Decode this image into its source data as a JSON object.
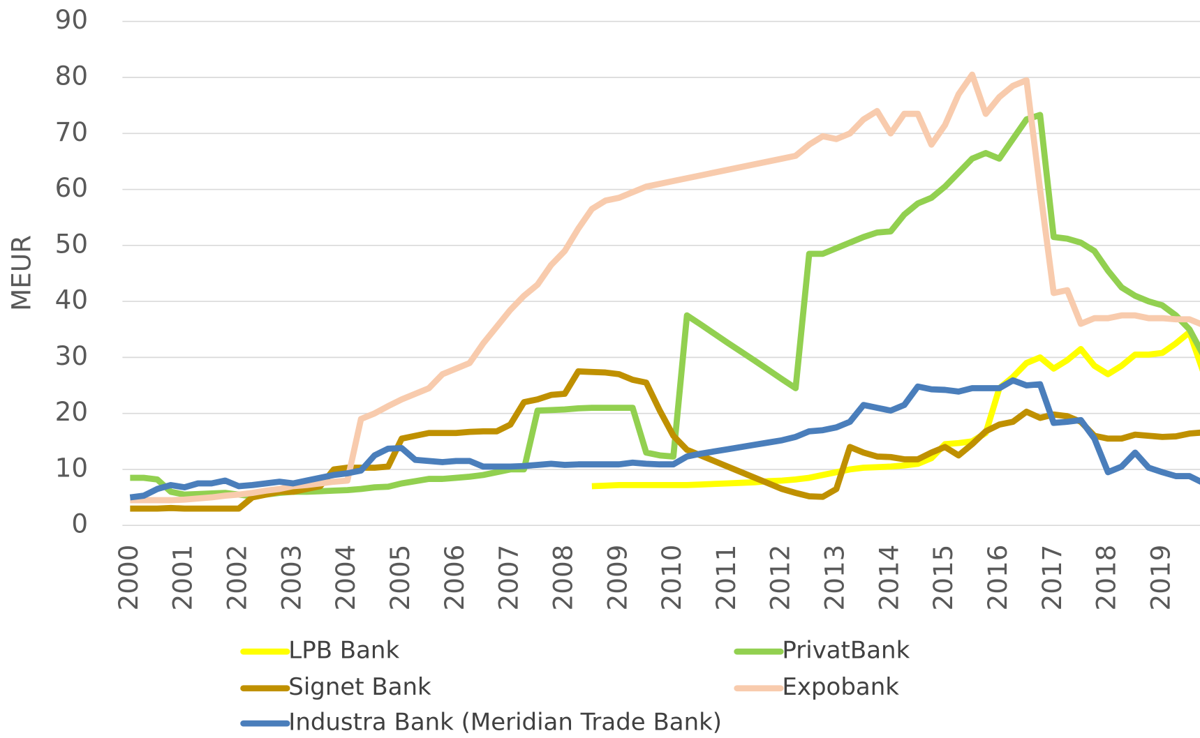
{
  "chart_data": {
    "type": "line",
    "y_label": "MEUR",
    "x": [
      2000,
      2000.25,
      2000.5,
      2000.75,
      2001,
      2001.25,
      2001.5,
      2001.75,
      2002,
      2002.25,
      2002.5,
      2002.75,
      2003,
      2003.25,
      2003.5,
      2003.75,
      2004,
      2004.25,
      2004.5,
      2004.75,
      2005,
      2005.25,
      2005.5,
      2005.75,
      2006,
      2006.25,
      2006.5,
      2006.75,
      2007,
      2007.25,
      2007.5,
      2007.75,
      2008,
      2008.25,
      2008.5,
      2008.75,
      2009,
      2009.25,
      2009.5,
      2009.75,
      2010,
      2010.25,
      2010.5,
      2010.75,
      2011,
      2011.25,
      2011.5,
      2011.75,
      2012,
      2012.25,
      2012.5,
      2012.75,
      2013,
      2013.25,
      2013.5,
      2013.75,
      2014,
      2014.25,
      2014.5,
      2014.75,
      2015,
      2015.25,
      2015.5,
      2015.75,
      2016,
      2016.25,
      2016.5,
      2016.75,
      2017,
      2017.25,
      2017.5,
      2017.75,
      2018,
      2018.25,
      2018.5,
      2018.75,
      2019,
      2019.25,
      2019.5,
      2019.75
    ],
    "series": [
      {
        "name": "LPB Bank",
        "color": "#ffff00",
        "values": [
          null,
          null,
          null,
          null,
          null,
          null,
          null,
          null,
          null,
          null,
          null,
          null,
          null,
          null,
          null,
          null,
          null,
          null,
          null,
          null,
          null,
          null,
          null,
          null,
          null,
          null,
          null,
          null,
          null,
          null,
          null,
          null,
          null,
          null,
          7,
          7.1,
          7.2,
          7.2,
          7.2,
          7.2,
          7.2,
          7.2,
          7.3,
          7.4,
          7.5,
          7.6,
          7.7,
          7.9,
          8,
          8.2,
          8.5,
          9,
          9.5,
          10,
          10.3,
          10.4,
          10.5,
          10.7,
          11,
          12,
          14.5,
          14.7,
          15,
          16.5,
          24.5,
          26.5,
          29,
          30,
          28,
          29.5,
          31.5,
          28.5,
          27,
          28.5,
          30.5,
          30.5,
          30.8,
          32.5,
          34.5,
          27.5
        ]
      },
      {
        "name": "PrivatBank",
        "color": "#92d050",
        "values": [
          8.5,
          8.5,
          8.2,
          6,
          5.5,
          5.6,
          5.7,
          5.8,
          5.5,
          5.2,
          5.5,
          5.8,
          6,
          6,
          6.1,
          6.2,
          6.3,
          6.5,
          6.8,
          6.9,
          7.5,
          7.9,
          8.3,
          8.3,
          8.5,
          8.7,
          9,
          9.5,
          10,
          10,
          20.5,
          20.6,
          20.7,
          20.9,
          21,
          21,
          21,
          21,
          13,
          12.5,
          12.3,
          37.5,
          35.9,
          34.25,
          32.6,
          31,
          29.4,
          27.75,
          26.1,
          24.5,
          48.5,
          48.5,
          49.5,
          50.5,
          51.5,
          52.3,
          52.5,
          55.5,
          57.5,
          58.5,
          60.5,
          63,
          65.5,
          66.5,
          65.5,
          69,
          72.5,
          73.3,
          51.5,
          51.2,
          50.5,
          49,
          45.5,
          42.5,
          41,
          40,
          39.3,
          37.5,
          35,
          30.5
        ]
      },
      {
        "name": "Signet Bank",
        "color": "#bf9000",
        "values": [
          3,
          3,
          3,
          3.1,
          3,
          3,
          3,
          3,
          3,
          5,
          5.5,
          6,
          6,
          6.5,
          7,
          10,
          10.3,
          10.3,
          10.3,
          10.5,
          15.5,
          16,
          16.5,
          16.5,
          16.5,
          16.7,
          16.8,
          16.8,
          18,
          22,
          22.5,
          23.3,
          23.5,
          27.5,
          27.4,
          27.3,
          27,
          26,
          25.5,
          20.5,
          16,
          13.5,
          12.5,
          11.5,
          10.5,
          9.5,
          8.5,
          7.5,
          6.5,
          5.8,
          5.2,
          5.1,
          6.5,
          14,
          13,
          12.3,
          12.2,
          11.8,
          11.8,
          13,
          14,
          12.5,
          14.5,
          16.8,
          18,
          18.5,
          20.3,
          19.2,
          19.8,
          19.5,
          18.5,
          16,
          15.5,
          15.5,
          16.2,
          16,
          15.8,
          15.9,
          16.4,
          16.6
        ]
      },
      {
        "name": "Expobank",
        "color": "#f8cbad",
        "values": [
          4.5,
          4.5,
          4.5,
          4.5,
          4.6,
          4.8,
          5,
          5.3,
          5.5,
          5.8,
          6.2,
          6.5,
          7,
          7.2,
          7.5,
          7.8,
          8,
          19,
          20,
          21.3,
          22.5,
          23.5,
          24.5,
          27,
          28,
          29,
          32.5,
          35.5,
          38.5,
          41,
          43,
          46.5,
          49,
          53,
          56.5,
          58,
          58.5,
          59.5,
          60.5,
          61,
          61.5,
          62,
          62.5,
          63,
          63.5,
          64,
          64.5,
          65,
          65.5,
          66,
          68,
          69.5,
          69,
          70,
          72.5,
          74,
          70,
          73.5,
          73.5,
          68,
          71.5,
          77,
          80.5,
          73.5,
          76.5,
          78.5,
          79.5,
          60,
          41.5,
          42,
          36,
          37,
          37,
          37.5,
          37.5,
          37,
          37,
          36.8,
          36.8,
          35.8
        ]
      },
      {
        "name": "Industra Bank (Meridian Trade Bank)",
        "color": "#4a7ebb",
        "values": [
          5,
          5.3,
          6.5,
          7.2,
          6.8,
          7.5,
          7.5,
          8,
          7,
          7.2,
          7.5,
          7.8,
          7.5,
          8,
          8.5,
          9,
          9.3,
          9.8,
          12.5,
          13.7,
          13.8,
          11.7,
          11.5,
          11.3,
          11.5,
          11.5,
          10.5,
          10.5,
          10.5,
          10.6,
          10.8,
          11,
          10.8,
          10.9,
          10.9,
          10.9,
          10.9,
          11.2,
          11,
          10.9,
          10.9,
          12.3,
          12.8,
          13.2,
          13.6,
          14,
          14.4,
          14.8,
          15.2,
          15.8,
          16.8,
          17,
          17.5,
          18.5,
          21.5,
          21,
          20.5,
          21.5,
          24.8,
          24.3,
          24.2,
          23.9,
          24.5,
          24.5,
          24.5,
          25.9,
          25,
          25.2,
          18.3,
          18.5,
          18.8,
          15.5,
          9.5,
          10.5,
          13,
          10.3,
          9.5,
          8.8,
          8.8,
          7.6
        ]
      }
    ],
    "xlim": [
      2000,
      2019.75
    ],
    "xticks": [
      2000,
      2001,
      2002,
      2003,
      2004,
      2005,
      2006,
      2007,
      2008,
      2009,
      2010,
      2011,
      2012,
      2013,
      2014,
      2015,
      2016,
      2017,
      2018,
      2019
    ],
    "ylim": [
      0,
      90
    ],
    "yticks": [
      0,
      10,
      20,
      30,
      40,
      50,
      60,
      70,
      80,
      90
    ],
    "grid": true,
    "legend": "bottom"
  }
}
